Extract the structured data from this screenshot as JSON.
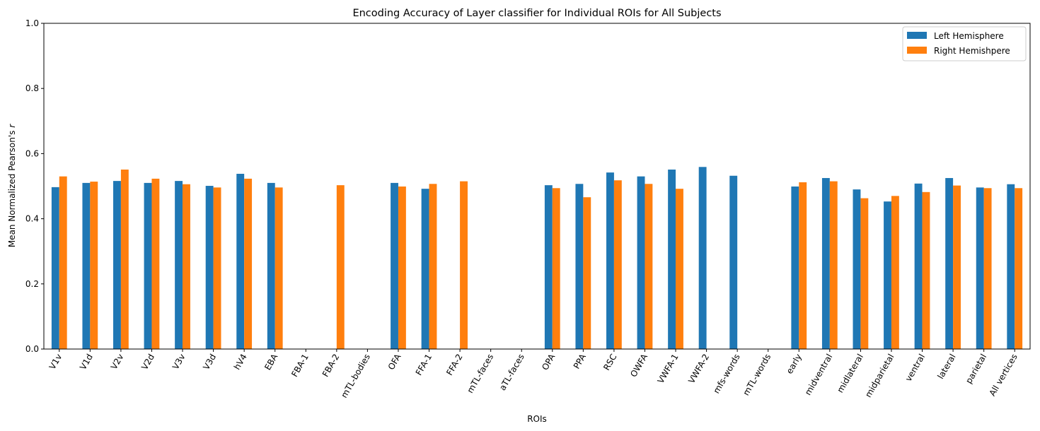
{
  "chart_data": {
    "type": "bar",
    "title": "Encoding Accuracy of Layer classifier for Individual ROIs for All Subjects",
    "xlabel": "ROIs",
    "ylabel": "Mean Normalized Pearson's ",
    "ylabel_italic": "r",
    "ylim": [
      0,
      1.0
    ],
    "yticks": [
      "0.0",
      "0.2",
      "0.4",
      "0.6",
      "0.8",
      "1.0"
    ],
    "legend_position": "top-right",
    "categories": [
      "V1v",
      "V1d",
      "V2v",
      "V2d",
      "V3v",
      "V3d",
      "hV4",
      "EBA",
      "FBA-1",
      "FBA-2",
      "mTL-bodies",
      "OFA",
      "FFA-1",
      "FFA-2",
      "mTL-faces",
      "aTL-faces",
      "OPA",
      "PPA",
      "RSC",
      "OWFA",
      "VWFA-1",
      "VWFA-2",
      "mfs-words",
      "mTL-words",
      "early",
      "midventral",
      "midlateral",
      "midparietal",
      "ventral",
      "lateral",
      "parietal",
      "All vertices"
    ],
    "series": [
      {
        "name": "Left Hemisphere",
        "color": "#1f77b4",
        "values": [
          0.497,
          0.51,
          0.516,
          0.51,
          0.516,
          0.501,
          0.538,
          0.51,
          null,
          null,
          null,
          0.51,
          0.492,
          null,
          null,
          null,
          0.503,
          0.507,
          0.542,
          0.53,
          0.551,
          0.559,
          0.532,
          null,
          0.499,
          0.525,
          0.49,
          0.453,
          0.508,
          0.525,
          0.496,
          0.506
        ]
      },
      {
        "name": "Right Hemishpere",
        "color": "#ff7f0e",
        "values": [
          0.53,
          0.514,
          0.551,
          0.523,
          0.506,
          0.496,
          0.523,
          0.496,
          null,
          0.503,
          null,
          0.499,
          0.507,
          0.515,
          null,
          null,
          0.494,
          0.466,
          0.518,
          0.507,
          0.492,
          null,
          null,
          null,
          0.512,
          0.515,
          0.463,
          0.47,
          0.482,
          0.502,
          0.494,
          0.494
        ]
      }
    ]
  }
}
